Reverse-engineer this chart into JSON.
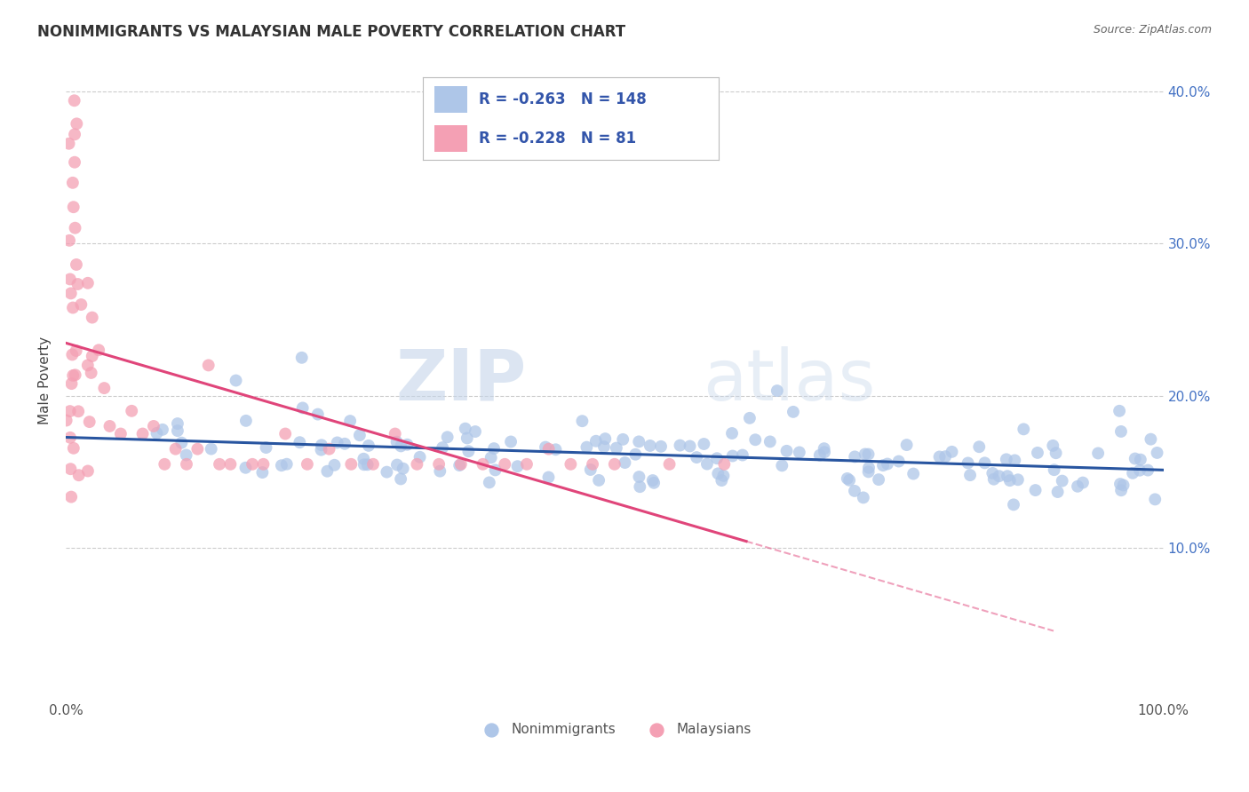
{
  "title": "NONIMMIGRANTS VS MALAYSIAN MALE POVERTY CORRELATION CHART",
  "source_text": "Source: ZipAtlas.com",
  "ylabel": "Male Poverty",
  "x_min": 0.0,
  "x_max": 1.0,
  "y_min": 0.0,
  "y_max": 0.42,
  "x_ticks": [
    0.0,
    1.0
  ],
  "x_tick_labels": [
    "0.0%",
    "100.0%"
  ],
  "y_ticks": [
    0.1,
    0.2,
    0.3,
    0.4
  ],
  "y_tick_labels_right": [
    "10.0%",
    "20.0%",
    "30.0%",
    "40.0%"
  ],
  "nonimmigrant_color": "#aec6e8",
  "malaysian_color": "#f4a0b4",
  "nonimmigrant_line_color": "#2855a0",
  "malaysian_line_color": "#e0457a",
  "R_nonimmigrant": -0.263,
  "N_nonimmigrant": 148,
  "R_malaysian": -0.228,
  "N_malaysian": 81,
  "legend_label_nonimmigrant": "Nonimmigrants",
  "legend_label_malaysian": "Malaysians",
  "watermark_zip": "ZIP",
  "watermark_atlas": "atlas",
  "background_color": "#ffffff",
  "grid_color": "#cccccc",
  "nonimmigrant_points": [
    [
      0.08,
      0.165
    ],
    [
      0.09,
      0.155
    ],
    [
      0.1,
      0.16
    ],
    [
      0.11,
      0.175
    ],
    [
      0.12,
      0.165
    ],
    [
      0.13,
      0.17
    ],
    [
      0.14,
      0.165
    ],
    [
      0.15,
      0.175
    ],
    [
      0.155,
      0.21
    ],
    [
      0.16,
      0.185
    ],
    [
      0.17,
      0.165
    ],
    [
      0.18,
      0.17
    ],
    [
      0.19,
      0.165
    ],
    [
      0.2,
      0.175
    ],
    [
      0.21,
      0.17
    ],
    [
      0.215,
      0.225
    ],
    [
      0.22,
      0.175
    ],
    [
      0.23,
      0.165
    ],
    [
      0.24,
      0.175
    ],
    [
      0.245,
      0.185
    ],
    [
      0.25,
      0.17
    ],
    [
      0.26,
      0.175
    ],
    [
      0.265,
      0.185
    ],
    [
      0.27,
      0.165
    ],
    [
      0.28,
      0.175
    ],
    [
      0.285,
      0.165
    ],
    [
      0.29,
      0.175
    ],
    [
      0.3,
      0.165
    ],
    [
      0.305,
      0.175
    ],
    [
      0.31,
      0.165
    ],
    [
      0.32,
      0.175
    ],
    [
      0.33,
      0.165
    ],
    [
      0.335,
      0.175
    ],
    [
      0.34,
      0.165
    ],
    [
      0.345,
      0.18
    ],
    [
      0.35,
      0.175
    ],
    [
      0.36,
      0.165
    ],
    [
      0.365,
      0.175
    ],
    [
      0.37,
      0.165
    ],
    [
      0.38,
      0.175
    ],
    [
      0.385,
      0.165
    ],
    [
      0.39,
      0.175
    ],
    [
      0.4,
      0.165
    ],
    [
      0.405,
      0.17
    ],
    [
      0.41,
      0.175
    ],
    [
      0.415,
      0.165
    ],
    [
      0.42,
      0.175
    ],
    [
      0.43,
      0.165
    ],
    [
      0.44,
      0.175
    ],
    [
      0.445,
      0.165
    ],
    [
      0.45,
      0.175
    ],
    [
      0.455,
      0.17
    ],
    [
      0.46,
      0.165
    ],
    [
      0.47,
      0.175
    ],
    [
      0.475,
      0.165
    ],
    [
      0.48,
      0.175
    ],
    [
      0.49,
      0.165
    ],
    [
      0.5,
      0.17
    ],
    [
      0.505,
      0.165
    ],
    [
      0.51,
      0.175
    ],
    [
      0.515,
      0.165
    ],
    [
      0.52,
      0.17
    ],
    [
      0.525,
      0.165
    ],
    [
      0.53,
      0.175
    ],
    [
      0.535,
      0.165
    ],
    [
      0.54,
      0.17
    ],
    [
      0.545,
      0.165
    ],
    [
      0.55,
      0.175
    ],
    [
      0.555,
      0.165
    ],
    [
      0.56,
      0.17
    ],
    [
      0.565,
      0.165
    ],
    [
      0.57,
      0.175
    ],
    [
      0.575,
      0.165
    ],
    [
      0.58,
      0.17
    ],
    [
      0.585,
      0.165
    ],
    [
      0.59,
      0.175
    ],
    [
      0.595,
      0.165
    ],
    [
      0.6,
      0.17
    ],
    [
      0.605,
      0.165
    ],
    [
      0.61,
      0.16
    ],
    [
      0.615,
      0.165
    ],
    [
      0.62,
      0.17
    ],
    [
      0.625,
      0.165
    ],
    [
      0.63,
      0.17
    ],
    [
      0.635,
      0.165
    ],
    [
      0.64,
      0.155
    ],
    [
      0.645,
      0.165
    ],
    [
      0.65,
      0.17
    ],
    [
      0.655,
      0.165
    ],
    [
      0.66,
      0.155
    ],
    [
      0.665,
      0.165
    ],
    [
      0.67,
      0.17
    ],
    [
      0.675,
      0.16
    ],
    [
      0.68,
      0.155
    ],
    [
      0.685,
      0.165
    ],
    [
      0.69,
      0.155
    ],
    [
      0.695,
      0.165
    ],
    [
      0.7,
      0.155
    ],
    [
      0.705,
      0.165
    ],
    [
      0.71,
      0.155
    ],
    [
      0.715,
      0.165
    ],
    [
      0.72,
      0.155
    ],
    [
      0.73,
      0.165
    ],
    [
      0.735,
      0.155
    ],
    [
      0.74,
      0.16
    ],
    [
      0.745,
      0.155
    ],
    [
      0.75,
      0.165
    ],
    [
      0.755,
      0.155
    ],
    [
      0.76,
      0.165
    ],
    [
      0.765,
      0.155
    ],
    [
      0.77,
      0.165
    ],
    [
      0.775,
      0.155
    ],
    [
      0.78,
      0.165
    ],
    [
      0.785,
      0.155
    ],
    [
      0.79,
      0.165
    ],
    [
      0.8,
      0.155
    ],
    [
      0.805,
      0.165
    ],
    [
      0.81,
      0.155
    ],
    [
      0.815,
      0.165
    ],
    [
      0.82,
      0.155
    ],
    [
      0.825,
      0.165
    ],
    [
      0.83,
      0.155
    ],
    [
      0.835,
      0.15
    ],
    [
      0.84,
      0.155
    ],
    [
      0.845,
      0.165
    ],
    [
      0.85,
      0.155
    ],
    [
      0.855,
      0.15
    ],
    [
      0.86,
      0.155
    ],
    [
      0.865,
      0.165
    ],
    [
      0.87,
      0.155
    ],
    [
      0.875,
      0.15
    ],
    [
      0.88,
      0.155
    ],
    [
      0.885,
      0.165
    ],
    [
      0.89,
      0.155
    ],
    [
      0.895,
      0.15
    ],
    [
      0.9,
      0.155
    ],
    [
      0.905,
      0.165
    ],
    [
      0.91,
      0.155
    ],
    [
      0.915,
      0.15
    ],
    [
      0.92,
      0.155
    ],
    [
      0.925,
      0.165
    ],
    [
      0.93,
      0.155
    ],
    [
      0.935,
      0.15
    ],
    [
      0.94,
      0.155
    ],
    [
      0.945,
      0.15
    ],
    [
      0.95,
      0.155
    ],
    [
      0.955,
      0.165
    ],
    [
      0.96,
      0.155
    ],
    [
      0.965,
      0.15
    ],
    [
      0.97,
      0.155
    ],
    [
      0.975,
      0.165
    ],
    [
      0.98,
      0.155
    ],
    [
      0.985,
      0.19
    ],
    [
      0.99,
      0.155
    ],
    [
      0.995,
      0.175
    ],
    [
      1.0,
      0.19
    ]
  ],
  "malaysian_points": [
    [
      0.005,
      0.165
    ],
    [
      0.005,
      0.17
    ],
    [
      0.005,
      0.175
    ],
    [
      0.005,
      0.18
    ],
    [
      0.005,
      0.185
    ],
    [
      0.005,
      0.19
    ],
    [
      0.005,
      0.195
    ],
    [
      0.005,
      0.2
    ],
    [
      0.005,
      0.205
    ],
    [
      0.005,
      0.21
    ],
    [
      0.005,
      0.215
    ],
    [
      0.005,
      0.22
    ],
    [
      0.005,
      0.225
    ],
    [
      0.005,
      0.23
    ],
    [
      0.005,
      0.235
    ],
    [
      0.005,
      0.24
    ],
    [
      0.005,
      0.245
    ],
    [
      0.005,
      0.25
    ],
    [
      0.005,
      0.255
    ],
    [
      0.005,
      0.26
    ],
    [
      0.005,
      0.265
    ],
    [
      0.005,
      0.27
    ],
    [
      0.005,
      0.275
    ],
    [
      0.01,
      0.155
    ],
    [
      0.01,
      0.165
    ],
    [
      0.01,
      0.17
    ],
    [
      0.01,
      0.175
    ],
    [
      0.01,
      0.18
    ],
    [
      0.01,
      0.185
    ],
    [
      0.01,
      0.19
    ],
    [
      0.015,
      0.155
    ],
    [
      0.015,
      0.16
    ],
    [
      0.015,
      0.165
    ],
    [
      0.015,
      0.17
    ],
    [
      0.015,
      0.175
    ],
    [
      0.015,
      0.18
    ],
    [
      0.02,
      0.155
    ],
    [
      0.02,
      0.165
    ],
    [
      0.02,
      0.18
    ],
    [
      0.025,
      0.155
    ],
    [
      0.025,
      0.165
    ],
    [
      0.025,
      0.175
    ],
    [
      0.03,
      0.155
    ],
    [
      0.03,
      0.165
    ],
    [
      0.035,
      0.155
    ],
    [
      0.04,
      0.16
    ],
    [
      0.05,
      0.165
    ],
    [
      0.05,
      0.155
    ],
    [
      0.06,
      0.155
    ],
    [
      0.065,
      0.165
    ],
    [
      0.07,
      0.155
    ],
    [
      0.075,
      0.165
    ],
    [
      0.08,
      0.155
    ],
    [
      0.085,
      0.165
    ],
    [
      0.09,
      0.155
    ],
    [
      0.1,
      0.155
    ],
    [
      0.11,
      0.155
    ],
    [
      0.12,
      0.155
    ],
    [
      0.13,
      0.18
    ],
    [
      0.14,
      0.155
    ],
    [
      0.15,
      0.155
    ],
    [
      0.16,
      0.155
    ],
    [
      0.17,
      0.155
    ],
    [
      0.18,
      0.155
    ],
    [
      0.19,
      0.155
    ],
    [
      0.2,
      0.155
    ],
    [
      0.21,
      0.155
    ],
    [
      0.22,
      0.155
    ],
    [
      0.23,
      0.155
    ],
    [
      0.24,
      0.155
    ],
    [
      0.25,
      0.155
    ],
    [
      0.26,
      0.155
    ],
    [
      0.27,
      0.155
    ],
    [
      0.28,
      0.155
    ],
    [
      0.3,
      0.155
    ],
    [
      0.32,
      0.155
    ],
    [
      0.35,
      0.155
    ],
    [
      0.4,
      0.155
    ],
    [
      0.5,
      0.155
    ]
  ]
}
